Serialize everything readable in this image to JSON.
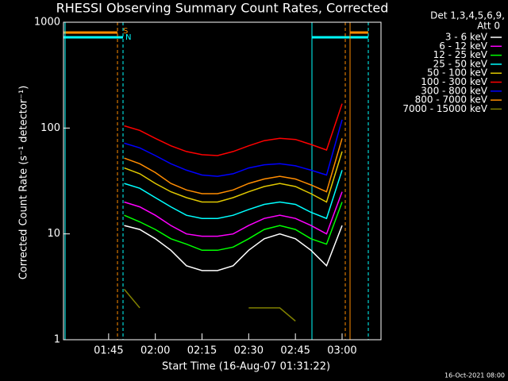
{
  "chart_data": {
    "type": "line",
    "title": "RHESSI Observing Summary Count Rates, Corrected",
    "xlabel": "Start Time (16-Aug-07 01:31:22)",
    "ylabel": "Corrected Count Rate (s⁻¹ detector⁻¹)",
    "legend_header": [
      "Det 1,3,4,5,6,9,",
      "Att 0"
    ],
    "flag_labels": [
      "S",
      "N"
    ],
    "footer": "16-Oct-2021 08:00",
    "log_y": true,
    "x": [
      110,
      115,
      120,
      125,
      130,
      135,
      140,
      145,
      150,
      155,
      160,
      165,
      170,
      175,
      180
    ],
    "xlim": [
      90.5,
      192.5
    ],
    "xticks": [
      {
        "value": 105,
        "label": "01:45"
      },
      {
        "value": 120,
        "label": "02:00"
      },
      {
        "value": 135,
        "label": "02:15"
      },
      {
        "value": 150,
        "label": "02:30"
      },
      {
        "value": 165,
        "label": "02:45"
      },
      {
        "value": 180,
        "label": "03:00"
      }
    ],
    "ylim": [
      1,
      1000
    ],
    "yticks": [
      1,
      10,
      100,
      1000
    ],
    "series": [
      {
        "name": "3 - 6 keV",
        "color": "#ffffff",
        "values": [
          12,
          11,
          9,
          7,
          5,
          4.5,
          4.5,
          5,
          7,
          9,
          10,
          9,
          7,
          5,
          12
        ]
      },
      {
        "name": "6 - 12 keV",
        "color": "#ff00ff",
        "values": [
          20,
          18,
          15,
          12,
          10,
          9.5,
          9.5,
          10,
          12,
          14,
          15,
          14,
          12,
          10,
          25
        ]
      },
      {
        "name": "12 - 25 keV",
        "color": "#00ff00",
        "values": [
          15,
          13,
          11,
          9,
          8,
          7,
          7,
          7.5,
          9,
          11,
          12,
          11,
          9,
          8,
          20
        ]
      },
      {
        "name": "25 - 50 keV",
        "color": "#00ffff",
        "values": [
          30,
          27,
          22,
          18,
          15,
          14,
          14,
          15,
          17,
          19,
          20,
          19,
          16,
          14,
          40
        ]
      },
      {
        "name": "50 - 100 keV",
        "color": "#e0c800",
        "values": [
          42,
          37,
          30,
          25,
          22,
          20,
          20,
          22,
          25,
          28,
          30,
          28,
          24,
          20,
          60
        ]
      },
      {
        "name": "100 - 300 keV",
        "color": "#ff0000",
        "values": [
          105,
          95,
          80,
          68,
          60,
          56,
          55,
          60,
          68,
          76,
          80,
          78,
          70,
          62,
          170
        ]
      },
      {
        "name": "300 - 800 keV",
        "color": "#0000ff",
        "values": [
          72,
          65,
          55,
          46,
          40,
          36,
          35,
          37,
          42,
          45,
          46,
          44,
          40,
          36,
          120
        ]
      },
      {
        "name": "800 - 7000 keV",
        "color": "#ff8c00",
        "values": [
          52,
          46,
          38,
          30,
          26,
          24,
          24,
          26,
          30,
          33,
          35,
          33,
          29,
          25,
          80
        ]
      },
      {
        "name": "7000 - 15000 keV",
        "color": "#808000",
        "values": [
          3,
          2,
          null,
          null,
          null,
          null,
          null,
          null,
          2,
          2,
          2,
          1.5,
          null,
          null,
          null
        ]
      }
    ]
  }
}
